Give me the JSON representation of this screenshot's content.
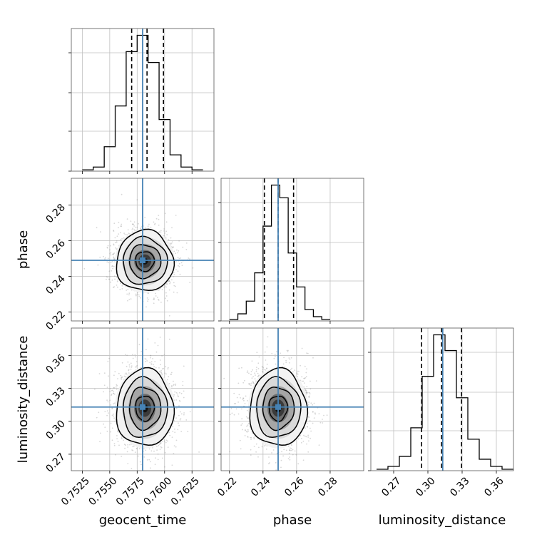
{
  "chart_data": {
    "type": "corner",
    "parameters": [
      "geocent_time",
      "phase",
      "luminosity_distance"
    ],
    "injected_values": {
      "geocent_time": 0.758,
      "phase": 0.249,
      "luminosity_distance": 0.313
    },
    "colors": {
      "truth": "#4682b4",
      "hist": "#000000",
      "grid": "#bfbfbf",
      "scatter": "#8c8c8c"
    },
    "grid": true,
    "histograms": [
      {
        "parameter": "geocent_time",
        "bin_edges": [
          0.7525,
          0.7535,
          0.7545,
          0.7555,
          0.7565,
          0.7575,
          0.7585,
          0.7595,
          0.7605,
          0.7615,
          0.7625,
          0.7635
        ],
        "counts": [
          0.01,
          0.03,
          0.18,
          0.48,
          0.88,
          1.0,
          0.8,
          0.38,
          0.12,
          0.03,
          0.01
        ],
        "quantiles": [
          0.757,
          0.7584,
          0.7599
        ],
        "xlim": [
          0.7515,
          0.7645
        ]
      },
      {
        "parameter": "phase",
        "bin_edges": [
          0.22,
          0.225,
          0.23,
          0.235,
          0.24,
          0.245,
          0.25,
          0.255,
          0.26,
          0.265,
          0.27,
          0.275,
          0.28
        ],
        "counts": [
          0.01,
          0.05,
          0.14,
          0.34,
          0.67,
          0.96,
          0.87,
          0.48,
          0.24,
          0.08,
          0.03,
          0.01
        ],
        "quantiles": [
          0.2408,
          0.249,
          0.2582
        ],
        "xlim": [
          0.215,
          0.3
        ]
      },
      {
        "parameter": "luminosity_distance",
        "bin_edges": [
          0.255,
          0.265,
          0.275,
          0.285,
          0.295,
          0.305,
          0.315,
          0.325,
          0.335,
          0.345,
          0.355,
          0.365,
          0.375
        ],
        "counts": [
          0.01,
          0.03,
          0.1,
          0.3,
          0.66,
          0.95,
          0.84,
          0.51,
          0.22,
          0.08,
          0.03,
          0.01
        ],
        "quantiles": [
          0.2945,
          0.312,
          0.3295
        ],
        "xlim": [
          0.25,
          0.375
        ]
      }
    ],
    "scatter_panels": [
      {
        "x": "geocent_time",
        "y": "phase",
        "center": [
          0.7582,
          0.2485
        ],
        "sigma": [
          0.0013,
          0.0085
        ],
        "xlim": [
          0.7515,
          0.7645
        ],
        "ylim": [
          0.215,
          0.295
        ]
      },
      {
        "x": "geocent_time",
        "y": "luminosity_distance",
        "center": [
          0.7582,
          0.312
        ],
        "sigma": [
          0.0013,
          0.0175
        ],
        "xlim": [
          0.7515,
          0.7645
        ],
        "ylim": [
          0.255,
          0.385
        ]
      },
      {
        "x": "phase",
        "y": "luminosity_distance",
        "center": [
          0.249,
          0.312
        ],
        "sigma": [
          0.0085,
          0.0175
        ],
        "xlim": [
          0.215,
          0.3
        ],
        "ylim": [
          0.255,
          0.385
        ]
      }
    ],
    "tick_labels": {
      "geocent_time": [
        "0.7525",
        "0.7550",
        "0.7575",
        "0.7600",
        "0.7625"
      ],
      "phase": [
        "0.22",
        "0.24",
        "0.26",
        "0.28"
      ],
      "luminosity_distance": [
        "0.27",
        "0.30",
        "0.33",
        "0.36"
      ]
    },
    "axis_labels": {
      "geocent_time": "geocent_time",
      "phase": "phase",
      "luminosity_distance": "luminosity_distance"
    }
  }
}
